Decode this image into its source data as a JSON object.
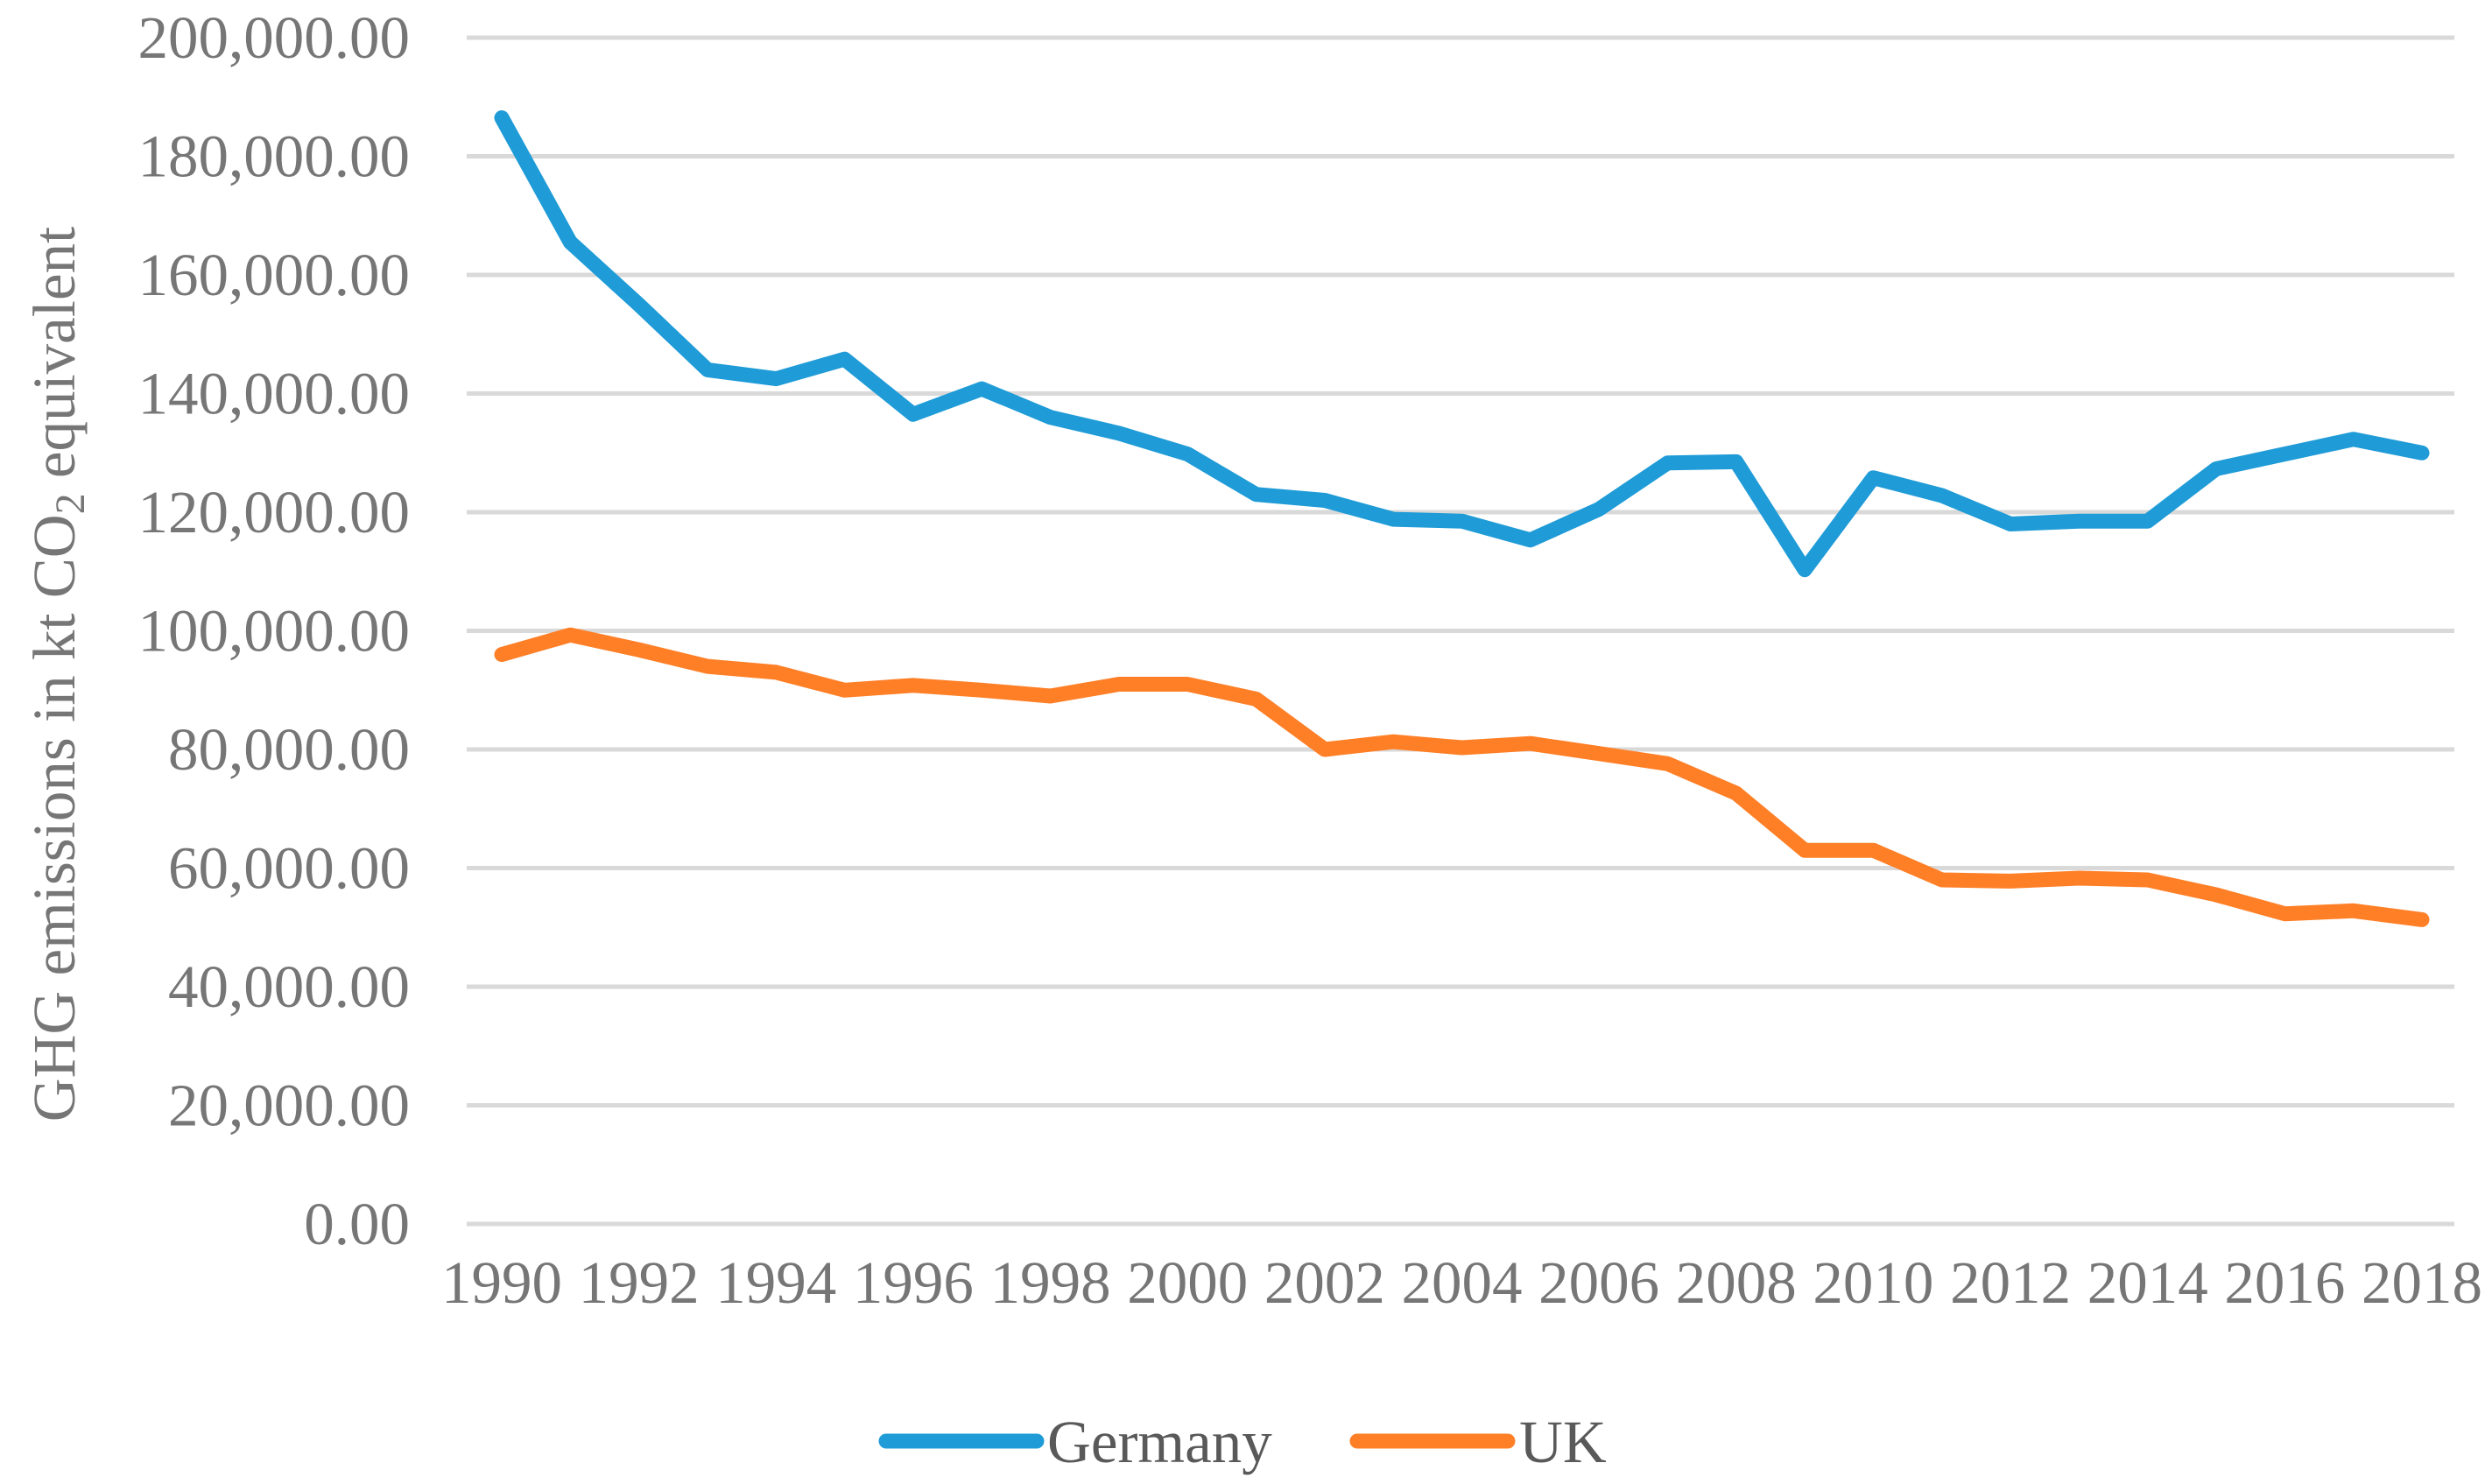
{
  "chart_data": {
    "type": "line",
    "title": "",
    "xlabel": "",
    "ylabel_main": "GHG emissions in kt CO",
    "ylabel_sub": "2",
    "ylabel_tail": " equivalent",
    "ylim": [
      0,
      200000
    ],
    "yticks": [
      0,
      20000,
      40000,
      60000,
      80000,
      100000,
      120000,
      140000,
      160000,
      180000,
      200000
    ],
    "ytick_labels": [
      "0.00",
      "20,000.00",
      "40,000.00",
      "60,000.00",
      "80,000.00",
      "100,000.00",
      "120,000.00",
      "140,000.00",
      "160,000.00",
      "180,000.00",
      "200,000.00"
    ],
    "x": [
      1990,
      1991,
      1992,
      1993,
      1994,
      1995,
      1996,
      1997,
      1998,
      1999,
      2000,
      2001,
      2002,
      2003,
      2004,
      2005,
      2006,
      2007,
      2008,
      2009,
      2010,
      2011,
      2012,
      2013,
      2014,
      2015,
      2016,
      2017,
      2018
    ],
    "xtick_labels": [
      "1990",
      "1992",
      "1994",
      "1996",
      "1998",
      "2000",
      "2002",
      "2004",
      "2006",
      "2008",
      "2010",
      "2012",
      "2014",
      "2016",
      "2018"
    ],
    "grid": true,
    "legend_position": "bottom",
    "series": [
      {
        "name": "Germany",
        "color": "#1f9bd7",
        "values": [
          186500,
          165500,
          155000,
          144000,
          142500,
          145800,
          136500,
          140800,
          136000,
          133300,
          129800,
          123000,
          122000,
          118800,
          118500,
          115300,
          120500,
          128300,
          128500,
          110300,
          125800,
          122800,
          118000,
          118500,
          118500,
          127300,
          129800,
          132300,
          130000
        ]
      },
      {
        "name": "UK",
        "color": "#ff7f27",
        "values": [
          96000,
          99300,
          96800,
          94000,
          93000,
          90000,
          90800,
          90000,
          89000,
          91000,
          91000,
          88500,
          80000,
          81300,
          80300,
          81000,
          79300,
          77600,
          72600,
          63000,
          63000,
          58000,
          57800,
          58300,
          58000,
          55500,
          52300,
          52800,
          51300
        ]
      }
    ]
  }
}
